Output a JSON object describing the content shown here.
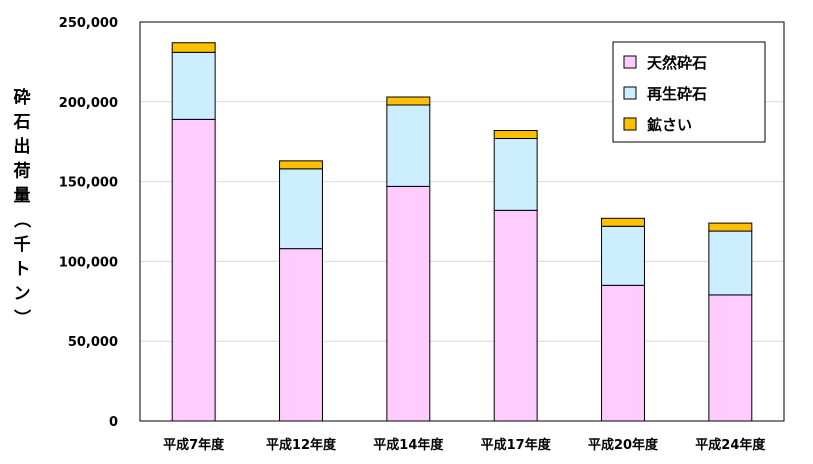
{
  "chart_data": {
    "type": "bar",
    "stacked": true,
    "categories": [
      "平成7年度",
      "平成12年度",
      "平成14年度",
      "平成17年度",
      "平成20年度",
      "平成24年度"
    ],
    "series": [
      {
        "name": "天然砕石",
        "color": "#ffccff",
        "values": [
          189000,
          108000,
          147000,
          132000,
          85000,
          79000
        ]
      },
      {
        "name": "再生砕石",
        "color": "#cceeff",
        "values": [
          42000,
          50000,
          51000,
          45000,
          37000,
          40000
        ]
      },
      {
        "name": "鉱さい",
        "color": "#ffc000",
        "values": [
          6000,
          5000,
          5000,
          5000,
          5000,
          5000
        ]
      }
    ],
    "ylabel": "砕石出荷量（千トン）",
    "xlabel": "",
    "title": "",
    "ylim": [
      0,
      250000
    ],
    "yticks": [
      0,
      50000,
      100000,
      150000,
      200000,
      250000
    ],
    "ytick_labels": [
      "0",
      "50,000",
      "100,000",
      "150,000",
      "200,000",
      "250,000"
    ],
    "grid": true,
    "legend_position": "top-right"
  }
}
